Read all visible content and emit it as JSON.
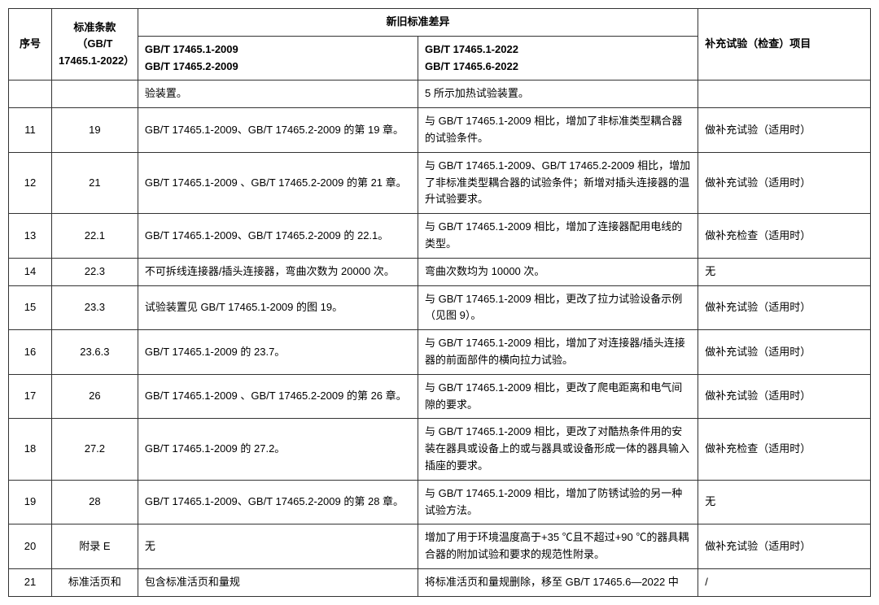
{
  "header": {
    "seq": "序号",
    "clause": "标准条款（GB/T 17465.1-2022）",
    "diff_group": "新旧标准差异",
    "old_std_line1": "GB/T 17465.1-2009",
    "old_std_line2": "GB/T 17465.2-2009",
    "new_std_line1": "GB/T 17465.1-2022",
    "new_std_line2": "GB/T 17465.6-2022",
    "supplement": "补充试验（检查）项目"
  },
  "rows": [
    {
      "seq": "",
      "clause": "",
      "old": "验装置。",
      "new": "5 所示加热试验装置。",
      "supp": ""
    },
    {
      "seq": "11",
      "clause": "19",
      "old": "GB/T 17465.1-2009、GB/T 17465.2-2009 的第 19 章。",
      "new": "与 GB/T 17465.1-2009 相比，增加了非标准类型耦合器的试验条件。",
      "supp": "做补充试验（适用时）"
    },
    {
      "seq": "12",
      "clause": "21",
      "old": "GB/T 17465.1-2009 、GB/T 17465.2-2009 的第 21 章。",
      "new": "与 GB/T 17465.1-2009、GB/T 17465.2-2009 相比，增加了非标准类型耦合器的试验条件；新增对插头连接器的温升试验要求。",
      "supp": "做补充试验（适用时）"
    },
    {
      "seq": "13",
      "clause": "22.1",
      "old": "GB/T 17465.1-2009、GB/T 17465.2-2009 的 22.1。",
      "new": "与 GB/T 17465.1-2009 相比，增加了连接器配用电线的类型。",
      "supp": "做补充检查（适用时）"
    },
    {
      "seq": "14",
      "clause": "22.3",
      "old": "不可拆线连接器/插头连接器，弯曲次数为 20000 次。",
      "new": "弯曲次数均为 10000 次。",
      "supp": "无"
    },
    {
      "seq": "15",
      "clause": "23.3",
      "old": "试验装置见 GB/T 17465.1-2009 的图 19。",
      "new": "与 GB/T 17465.1-2009 相比，更改了拉力试验设备示例（见图 9）。",
      "supp": "做补充试验（适用时）"
    },
    {
      "seq": "16",
      "clause": "23.6.3",
      "old": "GB/T 17465.1-2009 的 23.7。",
      "new": "与 GB/T 17465.1-2009 相比，增加了对连接器/插头连接器的前面部件的横向拉力试验。",
      "supp": "做补充试验（适用时）"
    },
    {
      "seq": "17",
      "clause": "26",
      "old": "GB/T 17465.1-2009 、GB/T 17465.2-2009 的第 26 章。",
      "new": "与 GB/T 17465.1-2009 相比，更改了爬电距离和电气间隙的要求。",
      "supp": "做补充试验（适用时）"
    },
    {
      "seq": "18",
      "clause": "27.2",
      "old": "GB/T 17465.1-2009 的  27.2。",
      "new": "与 GB/T 17465.1-2009 相比，更改了对酷热条件用的安装在器具或设备上的或与器具或设备形成一体的器具输入插座的要求。",
      "supp": "做补充检查（适用时）"
    },
    {
      "seq": "19",
      "clause": "28",
      "old": "GB/T 17465.1-2009、GB/T 17465.2-2009 的第 28 章。",
      "new": "与 GB/T 17465.1-2009 相比，增加了防锈试验的另一种试验方法。",
      "supp": "无"
    },
    {
      "seq": "20",
      "clause": "附录 E",
      "old": "无",
      "new": "增加了用于环境温度高于+35 ℃且不超过+90 ℃的器具耦合器的附加试验和要求的规范性附录。",
      "supp": "做补充试验（适用时）"
    },
    {
      "seq": "21",
      "clause": "标准活页和",
      "old": "包含标准活页和量规",
      "new": "将标准活页和量规删除，移至 GB/T 17465.6—2022 中",
      "supp": "/"
    }
  ],
  "styling": {
    "border_color": "#333333",
    "text_color": "#000000",
    "background_color": "#ffffff",
    "font_size_header": 13,
    "font_size_body": 13,
    "col_widths_pct": [
      5,
      10,
      30,
      35,
      20
    ]
  }
}
